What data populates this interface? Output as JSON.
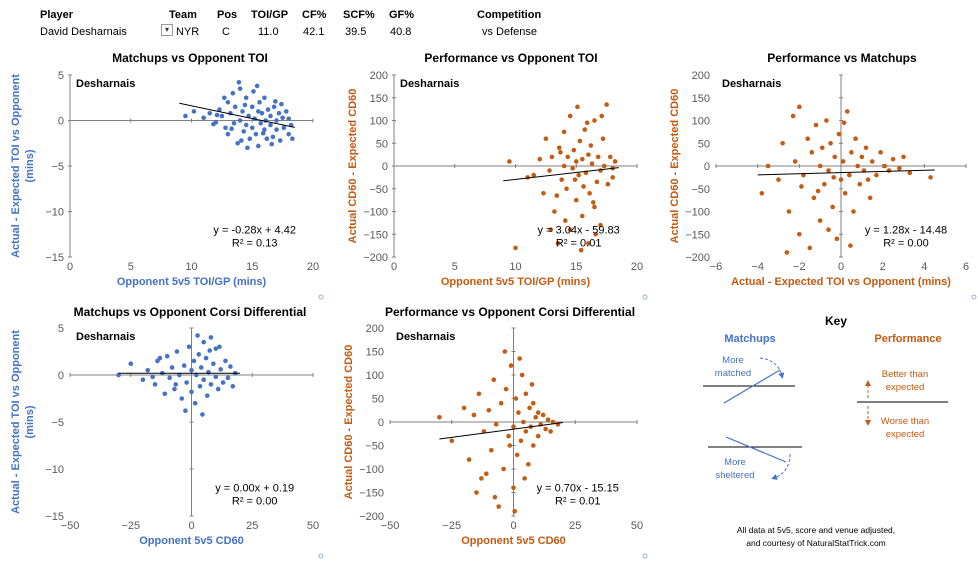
{
  "header": {
    "columns": [
      "Player",
      "Team",
      "Pos",
      "TOI/GP",
      "CF%",
      "SCF%",
      "GF%",
      "Competition"
    ],
    "values": [
      "David Desharnais",
      "NYR",
      "C",
      "11.0",
      "42.1",
      "39.5",
      "40.8",
      "vs Defense"
    ]
  },
  "colors": {
    "blue": "#4472c4",
    "orange": "#c55a11",
    "axis": "#bfbfbf",
    "text_blue": "#4472c4",
    "text_orange": "#c55a11"
  },
  "chart_data": [
    {
      "type": "scatter",
      "title": "Matchups vs Opponent TOI",
      "label": "Desharnais",
      "xlabel": "Opponent 5v5 TOI/GP (mins)",
      "ylabel": "Actual - Expected TOI vs Opponent (mins)",
      "xlim": [
        0,
        20
      ],
      "ylim": [
        -15,
        5
      ],
      "xticks": [
        0,
        5,
        10,
        15,
        20
      ],
      "yticks": [
        -15,
        -10,
        -5,
        0,
        5
      ],
      "color": "blue",
      "equation": "y = -0.28x + 4.42",
      "r2": "R² = 0.13",
      "trend": [
        [
          9,
          1.9
        ],
        [
          18.5,
          -0.76
        ]
      ],
      "points": [
        [
          9.5,
          0.5
        ],
        [
          10.2,
          1.0
        ],
        [
          11,
          0.3
        ],
        [
          11.5,
          0.8
        ],
        [
          12,
          -0.2
        ],
        [
          12.3,
          1.2
        ],
        [
          12.5,
          0.5
        ],
        [
          12.8,
          -0.8
        ],
        [
          13,
          2.0
        ],
        [
          13,
          -1.5
        ],
        [
          13.2,
          0.8
        ],
        [
          13.4,
          3.0
        ],
        [
          13.5,
          -0.3
        ],
        [
          13.6,
          1.5
        ],
        [
          13.8,
          -2.5
        ],
        [
          14,
          0.0
        ],
        [
          14,
          3.5
        ],
        [
          14.2,
          1.0
        ],
        [
          14.3,
          -1.2
        ],
        [
          14.5,
          2.5
        ],
        [
          14.5,
          -0.5
        ],
        [
          14.7,
          0.5
        ],
        [
          14.8,
          -2.0
        ],
        [
          15,
          1.5
        ],
        [
          15,
          -0.8
        ],
        [
          15.1,
          3.2
        ],
        [
          15.2,
          0.2
        ],
        [
          15.3,
          -1.5
        ],
        [
          15.5,
          1.0
        ],
        [
          15.5,
          -2.8
        ],
        [
          15.6,
          2.0
        ],
        [
          15.7,
          -0.3
        ],
        [
          15.8,
          0.8
        ],
        [
          16,
          -1.0
        ],
        [
          16,
          2.5
        ],
        [
          16.1,
          0.0
        ],
        [
          16.2,
          -2.0
        ],
        [
          16.3,
          1.2
        ],
        [
          16.5,
          -0.5
        ],
        [
          16.5,
          0.5
        ],
        [
          16.7,
          -1.8
        ],
        [
          16.8,
          1.5
        ],
        [
          17,
          0.0
        ],
        [
          17,
          -1.0
        ],
        [
          17.2,
          0.8
        ],
        [
          17.3,
          -2.2
        ],
        [
          17.5,
          0.3
        ],
        [
          17.6,
          -0.8
        ],
        [
          17.8,
          1.0
        ],
        [
          18,
          -1.5
        ],
        [
          18,
          0.2
        ],
        [
          18.2,
          -0.5
        ],
        [
          13.9,
          4.2
        ],
        [
          14.6,
          -3.0
        ],
        [
          12.7,
          2.5
        ],
        [
          15.4,
          3.8
        ],
        [
          16.6,
          -2.6
        ],
        [
          14.1,
          -2.2
        ],
        [
          13.3,
          -0.9
        ],
        [
          17.4,
          1.8
        ],
        [
          18.3,
          -2.0
        ],
        [
          12.1,
          0.6
        ],
        [
          11.8,
          -0.4
        ],
        [
          16.9,
          2.1
        ],
        [
          15.9,
          -1.4
        ],
        [
          14.4,
          1.7
        ]
      ]
    },
    {
      "type": "scatter",
      "title": "Performance vs Opponent TOI",
      "label": "Desharnais",
      "xlabel": "Opponent 5v5 TOI/GP (mins)",
      "ylabel": "Actual CD60 - Expected CD60",
      "xlim": [
        0,
        20
      ],
      "ylim": [
        -200,
        200
      ],
      "xticks": [
        0,
        5,
        10,
        15,
        20
      ],
      "yticks": [
        -200,
        -150,
        -100,
        -50,
        0,
        50,
        100,
        150,
        200
      ],
      "color": "orange",
      "equation": "y = 3.04x - 59.83",
      "r2": "R² = 0.01",
      "trend": [
        [
          9,
          -32.5
        ],
        [
          18.5,
          -3.6
        ]
      ],
      "points": [
        [
          9.5,
          10
        ],
        [
          10,
          -180
        ],
        [
          11,
          -25
        ],
        [
          11.5,
          -20
        ],
        [
          12,
          15
        ],
        [
          12.3,
          -60
        ],
        [
          12.5,
          60
        ],
        [
          12.8,
          -10
        ],
        [
          13,
          20
        ],
        [
          13.2,
          -100
        ],
        [
          13.5,
          -170
        ],
        [
          13.6,
          40
        ],
        [
          13.8,
          -30
        ],
        [
          14,
          0
        ],
        [
          14,
          75
        ],
        [
          14.2,
          -50
        ],
        [
          14.3,
          20
        ],
        [
          14.5,
          110
        ],
        [
          14.5,
          -140
        ],
        [
          14.7,
          -5
        ],
        [
          14.8,
          35
        ],
        [
          15,
          -75
        ],
        [
          15,
          10
        ],
        [
          15.1,
          130
        ],
        [
          15.2,
          -20
        ],
        [
          15.3,
          55
        ],
        [
          15.5,
          -110
        ],
        [
          15.5,
          15
        ],
        [
          15.6,
          -45
        ],
        [
          15.7,
          80
        ],
        [
          15.8,
          -15
        ],
        [
          16,
          25
        ],
        [
          16,
          -170
        ],
        [
          16.1,
          -60
        ],
        [
          16.2,
          45
        ],
        [
          16.3,
          5
        ],
        [
          16.5,
          -90
        ],
        [
          16.5,
          100
        ],
        [
          16.7,
          -35
        ],
        [
          16.8,
          20
        ],
        [
          17,
          -10
        ],
        [
          17,
          -130
        ],
        [
          17.2,
          60
        ],
        [
          17.3,
          0
        ],
        [
          17.5,
          135
        ],
        [
          17.6,
          -40
        ],
        [
          17.8,
          20
        ],
        [
          18,
          -25
        ],
        [
          18,
          -5
        ],
        [
          18.2,
          10
        ],
        [
          13.4,
          -65
        ],
        [
          14.1,
          -120
        ],
        [
          15.9,
          95
        ],
        [
          16.6,
          -150
        ],
        [
          12.9,
          -140
        ],
        [
          15.4,
          -185
        ],
        [
          17.1,
          110
        ],
        [
          13.7,
          30
        ],
        [
          14.9,
          -30
        ],
        [
          16.4,
          -80
        ]
      ]
    },
    {
      "type": "scatter",
      "title": "Performance vs Matchups",
      "label": "Desharnais",
      "xlabel": "Actual - Expected TOI vs Opponent (mins)",
      "ylabel": "Actual CD60 - Expected CD60",
      "xlim": [
        -6,
        6
      ],
      "ylim": [
        -200,
        200
      ],
      "xticks": [
        -6,
        -4,
        -2,
        0,
        2,
        4,
        6
      ],
      "yticks": [
        -200,
        -150,
        -100,
        -50,
        0,
        50,
        100,
        150,
        200
      ],
      "color": "orange",
      "equation": "y = 1.28x - 14.48",
      "r2": "R² = 0.00",
      "trend": [
        [
          -4,
          -19.6
        ],
        [
          4.5,
          -8.7
        ]
      ],
      "points": [
        [
          -3.8,
          -60
        ],
        [
          -3.5,
          0
        ],
        [
          -3,
          -30
        ],
        [
          -2.8,
          50
        ],
        [
          -2.5,
          -100
        ],
        [
          -2.3,
          110
        ],
        [
          -2.2,
          10
        ],
        [
          -2,
          -150
        ],
        [
          -2,
          130
        ],
        [
          -1.8,
          -20
        ],
        [
          -1.6,
          60
        ],
        [
          -1.5,
          -180
        ],
        [
          -1.4,
          30
        ],
        [
          -1.3,
          -70
        ],
        [
          -1.2,
          90
        ],
        [
          -1,
          0
        ],
        [
          -1,
          -120
        ],
        [
          -0.9,
          40
        ],
        [
          -0.8,
          -40
        ],
        [
          -0.7,
          100
        ],
        [
          -0.6,
          -10
        ],
        [
          -0.5,
          50
        ],
        [
          -0.4,
          -90
        ],
        [
          -0.3,
          20
        ],
        [
          -0.2,
          -160
        ],
        [
          -0.1,
          70
        ],
        [
          0,
          -30
        ],
        [
          0.1,
          10
        ],
        [
          0.2,
          -60
        ],
        [
          0.3,
          120
        ],
        [
          0.4,
          -20
        ],
        [
          0.5,
          30
        ],
        [
          0.6,
          -100
        ],
        [
          0.7,
          60
        ],
        [
          0.8,
          0
        ],
        [
          0.9,
          -40
        ],
        [
          1,
          20
        ],
        [
          1.1,
          -10
        ],
        [
          1.2,
          40
        ],
        [
          1.3,
          -30
        ],
        [
          1.5,
          10
        ],
        [
          1.7,
          -20
        ],
        [
          1.9,
          30
        ],
        [
          2.1,
          0
        ],
        [
          2.3,
          -10
        ],
        [
          2.5,
          15
        ],
        [
          2.8,
          -5
        ],
        [
          3,
          20
        ],
        [
          3.3,
          -15
        ],
        [
          4.3,
          -25
        ],
        [
          -1.9,
          -45
        ],
        [
          -0.6,
          -140
        ],
        [
          0.45,
          -175
        ],
        [
          -2.6,
          -190
        ],
        [
          -1.1,
          -55
        ],
        [
          0.15,
          95
        ],
        [
          1.4,
          -70
        ],
        [
          -0.35,
          -25
        ]
      ]
    },
    {
      "type": "scatter",
      "title": "Matchups vs Opponent Corsi Differential",
      "label": "Desharnais",
      "xlabel": "Opponent 5v5 CD60",
      "ylabel": "Actual - Expected TOI vs Opponent (mins)",
      "xlim": [
        -50,
        50
      ],
      "ylim": [
        -15,
        5
      ],
      "xticks": [
        -50,
        -25,
        0,
        25,
        50
      ],
      "yticks": [
        -15,
        -10,
        -5,
        0,
        5
      ],
      "color": "blue",
      "equation": "y = 0.00x + 0.19",
      "r2": "R² = 0.00",
      "trend": [
        [
          -30,
          0.19
        ],
        [
          20,
          0.19
        ]
      ],
      "points": [
        [
          -30,
          0.0
        ],
        [
          -25,
          1.2
        ],
        [
          -20,
          -0.5
        ],
        [
          -18,
          0.5
        ],
        [
          -15,
          -1.0
        ],
        [
          -14,
          1.5
        ],
        [
          -12,
          0.2
        ],
        [
          -11,
          -2.0
        ],
        [
          -10,
          2.0
        ],
        [
          -9,
          -0.3
        ],
        [
          -8,
          0.8
        ],
        [
          -7,
          -1.5
        ],
        [
          -6,
          2.5
        ],
        [
          -5,
          0.0
        ],
        [
          -4,
          -2.5
        ],
        [
          -3,
          1.0
        ],
        [
          -2,
          -0.8
        ],
        [
          -1,
          3.0
        ],
        [
          0,
          0.5
        ],
        [
          0,
          -1.8
        ],
        [
          1,
          1.5
        ],
        [
          1.5,
          -3.0
        ],
        [
          2,
          0.0
        ],
        [
          3,
          2.2
        ],
        [
          3.5,
          -1.2
        ],
        [
          4,
          0.8
        ],
        [
          5,
          3.5
        ],
        [
          5,
          -0.5
        ],
        [
          6,
          1.8
        ],
        [
          6.5,
          -2.2
        ],
        [
          7,
          0.3
        ],
        [
          8,
          4.0
        ],
        [
          8,
          -1.0
        ],
        [
          9,
          1.2
        ],
        [
          10,
          -0.2
        ],
        [
          10,
          2.8
        ],
        [
          11,
          -1.5
        ],
        [
          12,
          0.6
        ],
        [
          13,
          -0.8
        ],
        [
          14,
          1.5
        ],
        [
          15,
          -0.3
        ],
        [
          16,
          0.9
        ],
        [
          17,
          -1.2
        ],
        [
          18,
          0.2
        ],
        [
          -16,
          -0.2
        ],
        [
          -13,
          1.8
        ],
        [
          -2.5,
          -3.8
        ],
        [
          4.5,
          -4.2
        ],
        [
          7.5,
          2.6
        ],
        [
          2.5,
          4.2
        ],
        [
          -6.5,
          -1.0
        ],
        [
          11.5,
          3.0
        ]
      ]
    },
    {
      "type": "scatter",
      "title": "Performance vs Opponent Corsi Differential",
      "label": "Desharnais",
      "xlabel": "Opponent 5v5 CD60",
      "ylabel": "Actual CD60 - Expected CD60",
      "xlim": [
        -50,
        50
      ],
      "ylim": [
        -200,
        200
      ],
      "xticks": [
        -50,
        -25,
        0,
        25,
        50
      ],
      "yticks": [
        -200,
        -150,
        -100,
        -50,
        0,
        50,
        100,
        150,
        200
      ],
      "color": "orange",
      "equation": "y = 0.70x - 15.15",
      "r2": "R² = 0.01",
      "trend": [
        [
          -30,
          -36.15
        ],
        [
          20,
          -1.15
        ]
      ],
      "points": [
        [
          -30,
          10
        ],
        [
          -25,
          -40
        ],
        [
          -20,
          30
        ],
        [
          -18,
          -80
        ],
        [
          -16,
          15
        ],
        [
          -15,
          -150
        ],
        [
          -14,
          60
        ],
        [
          -12,
          -20
        ],
        [
          -11,
          -110
        ],
        [
          -10,
          25
        ],
        [
          -9,
          -60
        ],
        [
          -8,
          90
        ],
        [
          -7,
          -5
        ],
        [
          -6,
          -180
        ],
        [
          -5,
          40
        ],
        [
          -4,
          -100
        ],
        [
          -3,
          70
        ],
        [
          -2,
          -30
        ],
        [
          -1,
          120
        ],
        [
          0,
          -10
        ],
        [
          0,
          -140
        ],
        [
          1,
          50
        ],
        [
          1.5,
          -70
        ],
        [
          2,
          20
        ],
        [
          3,
          -40
        ],
        [
          3.5,
          100
        ],
        [
          4,
          0
        ],
        [
          5,
          -20
        ],
        [
          5,
          60
        ],
        [
          6,
          -90
        ],
        [
          6.5,
          30
        ],
        [
          7,
          -10
        ],
        [
          8,
          40
        ],
        [
          8,
          -50
        ],
        [
          9,
          10
        ],
        [
          10,
          -30
        ],
        [
          10,
          20
        ],
        [
          11,
          -5
        ],
        [
          12,
          15
        ],
        [
          13,
          -15
        ],
        [
          14,
          5
        ],
        [
          15,
          -20
        ],
        [
          16,
          0
        ],
        [
          18,
          -5
        ],
        [
          -13,
          -120
        ],
        [
          -7.5,
          -160
        ],
        [
          2.5,
          135
        ],
        [
          0.5,
          -190
        ],
        [
          4.5,
          -120
        ],
        [
          -3.5,
          150
        ],
        [
          7.5,
          80
        ],
        [
          -1.5,
          -50
        ]
      ]
    }
  ],
  "key": {
    "title": "Key",
    "matchups_label": "Matchups",
    "performance_label": "Performance",
    "more_matched": "More matched",
    "more_sheltered": "More sheltered",
    "better": "Better than expected",
    "worse": "Worse than expected"
  },
  "footer": {
    "line1": "All data at 5v5, score and venue adjusted,",
    "line2": "and courtesy of NaturalStatTrick.com"
  }
}
